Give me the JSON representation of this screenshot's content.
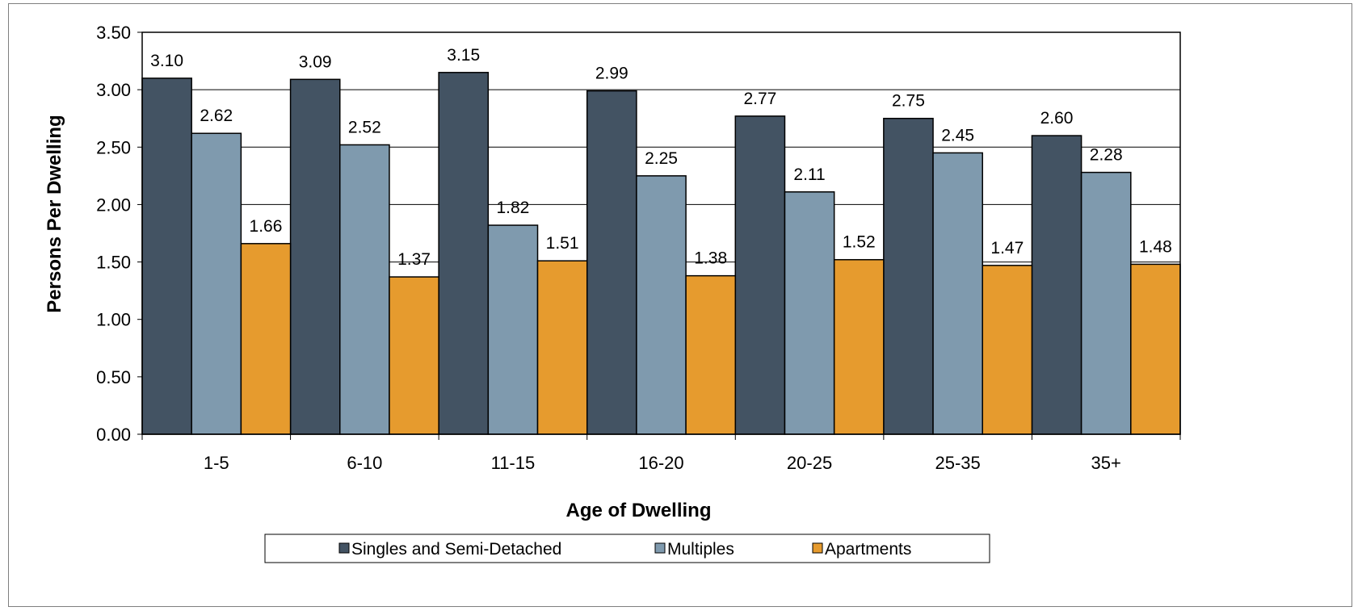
{
  "chart_data": {
    "type": "bar",
    "title": "",
    "xlabel": "Age of Dwelling",
    "ylabel": "Persons Per Dwelling",
    "categories": [
      "1-5",
      "6-10",
      "11-15",
      "16-20",
      "20-25",
      "25-35",
      "35+"
    ],
    "series": [
      {
        "name": "Singles and Semi-Detached",
        "color": "#435363",
        "values": [
          3.1,
          3.09,
          3.15,
          2.99,
          2.77,
          2.75,
          2.6
        ]
      },
      {
        "name": "Multiples",
        "color": "#7f9aae",
        "values": [
          2.62,
          2.52,
          1.82,
          2.25,
          2.11,
          2.45,
          2.28
        ]
      },
      {
        "name": "Apartments",
        "color": "#e69b2e",
        "values": [
          1.66,
          1.37,
          1.51,
          1.38,
          1.52,
          1.47,
          1.48
        ]
      }
    ],
    "ylim": [
      0,
      3.5
    ],
    "yticks": [
      "0.00",
      "0.50",
      "1.00",
      "1.50",
      "2.00",
      "2.50",
      "3.00",
      "3.50"
    ],
    "grid": true,
    "legend_position": "bottom"
  }
}
